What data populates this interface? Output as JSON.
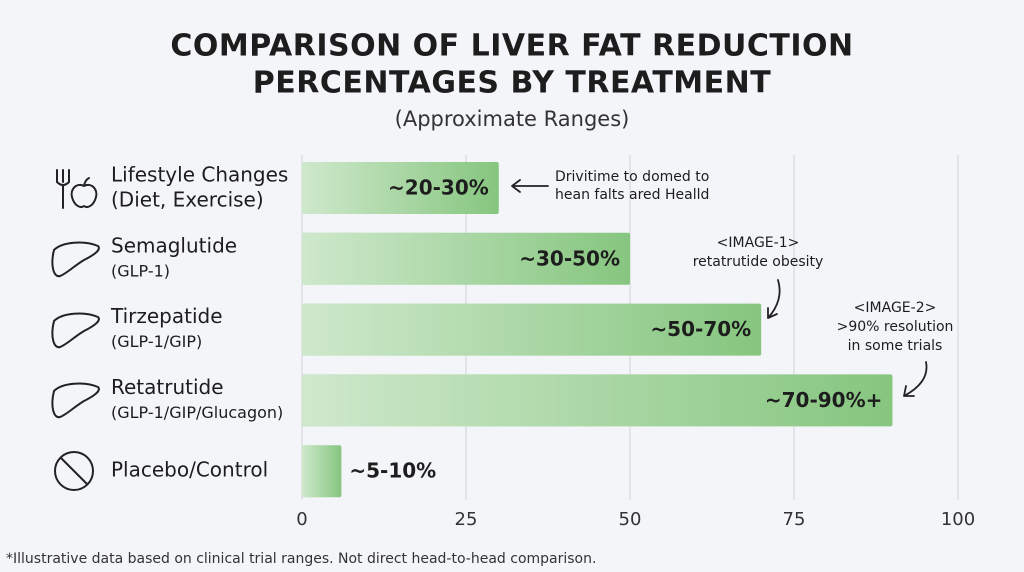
{
  "chart_data": {
    "type": "barh",
    "title_lines": [
      "COMPARISON OF LIVER FAT REDUCTION",
      "PERCENTAGES BY TREATMENT"
    ],
    "subtitle": "(Approximate Ranges)",
    "categories": [
      "Lifestyle Changes",
      "Semaglutide",
      "Tirzepatide",
      "Retatrutide",
      "Placebo/Control"
    ],
    "category_details": [
      "(Diet, Exercise)",
      "(GLP-1)",
      "(GLP-1/GIP)",
      "(GLP-1/GIP/Glucagon)",
      null
    ],
    "values": [
      30,
      50,
      70,
      90,
      6
    ],
    "value_labels": [
      "~20-30%",
      "~30-50%",
      "~50-70%",
      "~70-90%+",
      "~5-10%"
    ],
    "color": "#86c67f",
    "xlim": [
      0,
      100
    ],
    "xticks": [
      0,
      25,
      50,
      75,
      100
    ],
    "grid": true,
    "annotations": [
      {
        "lines": [
          "Drivitime to domed to",
          "hean falts ared Healld"
        ]
      },
      {
        "lines": [
          "<IMAGE-1>",
          "retatrutide obesity"
        ]
      },
      {
        "lines": [
          "<IMAGE-2>",
          ">90% resolution",
          "in some trials"
        ]
      }
    ],
    "footnote": "*Illustrative data based on clinical trial ranges. Not direct head-to-head comparison."
  }
}
